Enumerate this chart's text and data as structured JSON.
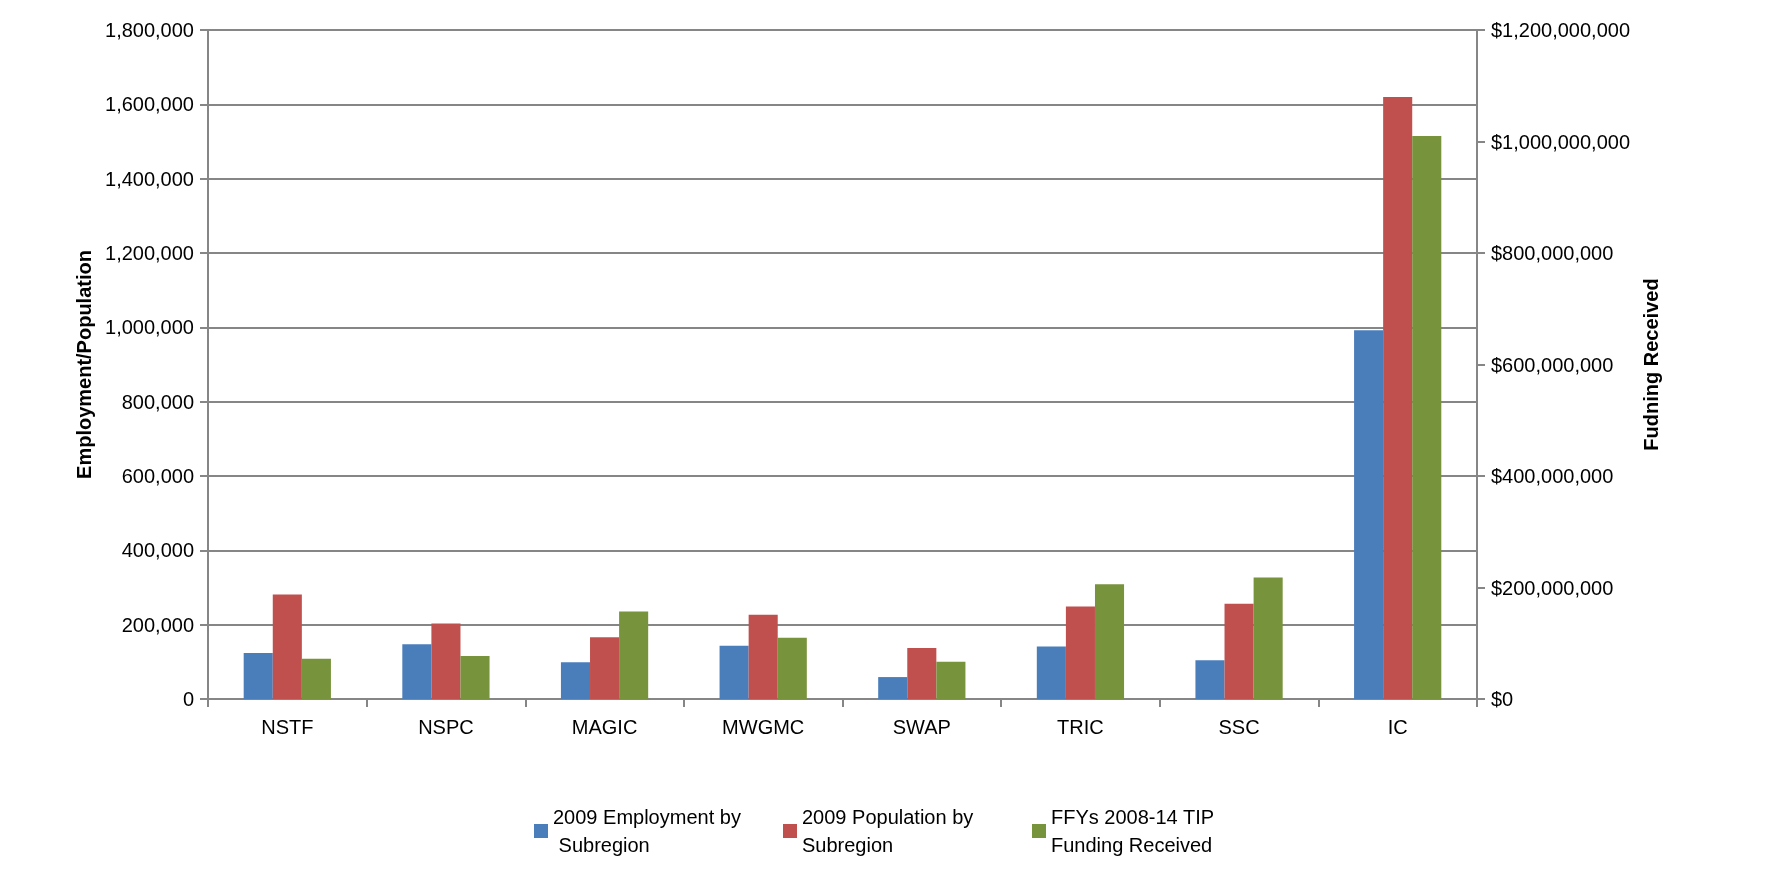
{
  "chart_data": {
    "type": "bar",
    "ylabel": "Employment/Population",
    "y2label": "Fudning Received",
    "categories": [
      "NSTF",
      "NSPC",
      "MAGIC",
      "MWGMC",
      "SWAP",
      "TRIC",
      "SSC",
      "IC"
    ],
    "series": [
      {
        "name": "2009 Employment by Subregion",
        "color": "#4a7ebb",
        "values": [
          124000,
          147000,
          99000,
          143000,
          59000,
          141000,
          104000,
          992000
        ]
      },
      {
        "name": "2009 Population by Subregion",
        "color": "#c0504d",
        "values": [
          281000,
          203000,
          166000,
          227000,
          137000,
          249000,
          256000,
          1620000
        ]
      },
      {
        "name": "FFYs 2008-14 TIP Funding Received",
        "color": "#77933c",
        "axis": "y2",
        "values": [
          72000000,
          77000000,
          157000000,
          110000000,
          67000000,
          206000000,
          218000000,
          1010000000
        ]
      }
    ],
    "ylim": [
      0,
      1800000
    ],
    "yticks": [
      {
        "value": 0,
        "label": "0"
      },
      {
        "value": 200000,
        "label": "200,000"
      },
      {
        "value": 400000,
        "label": "400,000"
      },
      {
        "value": 600000,
        "label": "600,000"
      },
      {
        "value": 800000,
        "label": "800,000"
      },
      {
        "value": 1000000,
        "label": "1,000,000"
      },
      {
        "value": 1200000,
        "label": "1,200,000"
      },
      {
        "value": 1400000,
        "label": "1,400,000"
      },
      {
        "value": 1600000,
        "label": "1,600,000"
      },
      {
        "value": 1800000,
        "label": "1,800,000"
      }
    ],
    "y2lim": [
      0,
      1200000000
    ],
    "y2ticks": [
      {
        "value": 0,
        "label": "$0"
      },
      {
        "value": 200000000,
        "label": "$200,000,000"
      },
      {
        "value": 400000000,
        "label": "$400,000,000"
      },
      {
        "value": 600000000,
        "label": "$600,000,000"
      },
      {
        "value": 800000000,
        "label": "$800,000,000"
      },
      {
        "value": 1000000000,
        "label": "$1,000,000,000"
      },
      {
        "value": 1200000000,
        "label": "$1,200,000,000"
      }
    ],
    "grid": "y",
    "legend": "bottom"
  }
}
